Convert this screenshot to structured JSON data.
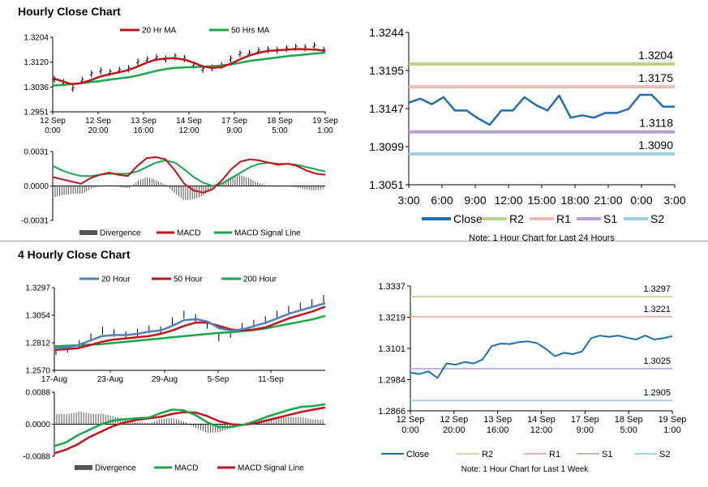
{
  "sections": [
    {
      "title": "Hourly Close Chart"
    },
    {
      "title": "4 Hourly Close Chart"
    }
  ],
  "chart_data": [
    {
      "id": "hourly_price",
      "type": "line",
      "title": "Hourly Close Chart",
      "legend": [
        "20 Hr MA",
        "50 Hrs MA"
      ],
      "colors": {
        "20 Hr MA": "#c0141c",
        "50 Hrs MA": "#1aa64b"
      },
      "ylim": [
        1.2951,
        1.3204
      ],
      "yticks": [
        "1.3204",
        "1.3120",
        "1.3036",
        "1.2951"
      ],
      "xticks": [
        [
          "12 Sep",
          "0:00"
        ],
        [
          "12 Sep",
          "20:00"
        ],
        [
          "13 Sep",
          "16:00"
        ],
        [
          "14 Sep",
          "12:00"
        ],
        [
          "17 Sep",
          "9:00"
        ],
        [
          "18 Sep",
          "5:00"
        ],
        [
          "19 Sep",
          "1:00"
        ]
      ],
      "series": [
        {
          "name": "Close",
          "values": [
            1.3062,
            1.305,
            1.303,
            1.3058,
            1.308,
            1.309,
            1.3085,
            1.3092,
            1.3098,
            1.312,
            1.3128,
            1.3135,
            1.313,
            1.3138,
            1.3132,
            1.311,
            1.3095,
            1.31,
            1.3108,
            1.313,
            1.3148,
            1.315,
            1.3158,
            1.3162,
            1.316,
            1.3165,
            1.317,
            1.3168,
            1.3175,
            1.316
          ]
        },
        {
          "name": "20 Hr MA",
          "values": [
            1.3065,
            1.3055,
            1.3045,
            1.3048,
            1.3058,
            1.307,
            1.3078,
            1.3085,
            1.3092,
            1.3104,
            1.3118,
            1.3128,
            1.3132,
            1.3133,
            1.3128,
            1.3118,
            1.3105,
            1.31,
            1.3103,
            1.3115,
            1.313,
            1.3143,
            1.3152,
            1.3158,
            1.316,
            1.3162,
            1.3164,
            1.3163,
            1.3162,
            1.3158
          ]
        },
        {
          "name": "50 Hrs MA",
          "values": [
            1.304,
            1.3042,
            1.3045,
            1.3048,
            1.3052,
            1.3055,
            1.306,
            1.3064,
            1.3068,
            1.3074,
            1.3082,
            1.309,
            1.3096,
            1.31,
            1.3102,
            1.3103,
            1.3104,
            1.3106,
            1.3108,
            1.3112,
            1.3118,
            1.3124,
            1.3128,
            1.3132,
            1.3136,
            1.314,
            1.3143,
            1.3146,
            1.3149,
            1.3152
          ]
        }
      ]
    },
    {
      "id": "hourly_macd",
      "type": "line",
      "legend": [
        "Divergence",
        "MACD",
        "MACD Signal Line"
      ],
      "colors": {
        "Divergence": "#555555",
        "MACD": "#c0141c",
        "MACD Signal Line": "#1aa64b"
      },
      "ylim": [
        -0.0031,
        0.0031
      ],
      "yticks": [
        "0.0031",
        "0.0000",
        "-0.0031"
      ],
      "series": [
        {
          "name": "MACD",
          "values": [
            0.0008,
            0.0006,
            0.0004,
            0.0002,
            0.0007,
            0.001,
            0.0012,
            0.001,
            0.0009,
            0.0018,
            0.0025,
            0.0026,
            0.0024,
            0.0014,
            0.0002,
            -0.0004,
            -0.0006,
            -0.0003,
            0.0005,
            0.0015,
            0.0022,
            0.0024,
            0.0023,
            0.0021,
            0.0019,
            0.002,
            0.0018,
            0.0014,
            0.0011,
            0.001
          ]
        },
        {
          "name": "MACD Signal Line",
          "values": [
            0.0018,
            0.0014,
            0.0011,
            0.0009,
            0.0009,
            0.001,
            0.0011,
            0.0011,
            0.0011,
            0.0013,
            0.0017,
            0.0021,
            0.0023,
            0.0021,
            0.0015,
            0.0008,
            0.0003,
            0.0,
            0.0002,
            0.0007,
            0.0012,
            0.0017,
            0.002,
            0.0021,
            0.002,
            0.002,
            0.0019,
            0.0017,
            0.0015,
            0.0013
          ]
        }
      ]
    },
    {
      "id": "hourly_levels",
      "type": "line",
      "note": "Note: 1 Hour Chart for Last 24 Hours",
      "ylim": [
        1.3051,
        1.3244
      ],
      "yticks": [
        "1.3244",
        "1.3195",
        "1.3147",
        "1.3099",
        "1.3051"
      ],
      "xticks": [
        "3:00",
        "6:00",
        "9:00",
        "12:00",
        "15:00",
        "18:00",
        "21:00",
        "0:00",
        "3:00"
      ],
      "legend": [
        "Close",
        "R2",
        "R1",
        "S1",
        "S2"
      ],
      "colors": {
        "Close": "#1f6fb0",
        "R2": "#b7d58b",
        "R1": "#f0b9b4",
        "S1": "#b7a2cf",
        "S2": "#9fcfe0"
      },
      "levels": [
        {
          "name": "R2",
          "value": 1.3204,
          "label": "1.3204"
        },
        {
          "name": "R1",
          "value": 1.3175,
          "label": "1.3175"
        },
        {
          "name": "S1",
          "value": 1.3118,
          "label": "1.3118"
        },
        {
          "name": "S2",
          "value": 1.309,
          "label": "1.3090"
        }
      ],
      "series": [
        {
          "name": "Close",
          "values": [
            1.3155,
            1.316,
            1.3153,
            1.3162,
            1.3145,
            1.3145,
            1.3135,
            1.3127,
            1.3145,
            1.3145,
            1.3162,
            1.3152,
            1.3145,
            1.3164,
            1.3136,
            1.3139,
            1.3136,
            1.3142,
            1.3142,
            1.3147,
            1.3165,
            1.3165,
            1.315,
            1.315
          ]
        }
      ]
    },
    {
      "id": "four_hourly_price",
      "type": "line",
      "title": "4 Hourly Close Chart",
      "legend": [
        "20 Hour",
        "50 Hour",
        "200 Hour"
      ],
      "colors": {
        "20 Hour": "#4f81bd",
        "50 Hour": "#c0141c",
        "200 Hour": "#1aa64b"
      },
      "ylim": [
        1.257,
        1.3297
      ],
      "yticks": [
        "1.3297",
        "1.3054",
        "1.2812",
        "1.2570"
      ],
      "xticks": [
        "17-Aug",
        "23-Aug",
        "29-Aug",
        "5-Sep",
        "11-Sep"
      ],
      "series": [
        {
          "name": "Close",
          "values": [
            1.274,
            1.276,
            1.28,
            1.286,
            1.292,
            1.29,
            1.288,
            1.29,
            1.293,
            1.292,
            1.3,
            1.306,
            1.303,
            1.297,
            1.286,
            1.289,
            1.295,
            1.298,
            1.301,
            1.306,
            1.31,
            1.313,
            1.316,
            1.32
          ]
        },
        {
          "name": "20 Hour",
          "values": [
            1.276,
            1.277,
            1.279,
            1.283,
            1.287,
            1.288,
            1.288,
            1.289,
            1.291,
            1.292,
            1.296,
            1.301,
            1.302,
            1.3,
            1.294,
            1.292,
            1.293,
            1.296,
            1.299,
            1.303,
            1.307,
            1.31,
            1.313,
            1.316
          ]
        },
        {
          "name": "50 Hour",
          "values": [
            1.275,
            1.2755,
            1.2765,
            1.279,
            1.282,
            1.284,
            1.285,
            1.286,
            1.287,
            1.289,
            1.292,
            1.296,
            1.299,
            1.299,
            1.296,
            1.293,
            1.292,
            1.293,
            1.295,
            1.299,
            1.303,
            1.306,
            1.309,
            1.313
          ]
        },
        {
          "name": "200 Hour",
          "values": [
            1.278,
            1.2785,
            1.279,
            1.2795,
            1.28,
            1.281,
            1.282,
            1.283,
            1.284,
            1.285,
            1.286,
            1.287,
            1.288,
            1.289,
            1.29,
            1.2905,
            1.2915,
            1.2925,
            1.294,
            1.296,
            1.298,
            1.3,
            1.302,
            1.305
          ]
        }
      ]
    },
    {
      "id": "four_hourly_macd",
      "type": "line",
      "legend": [
        "Divergence",
        "MACD",
        "MACD Signal Line"
      ],
      "colors": {
        "Divergence": "#555555",
        "MACD": "#1aa64b",
        "MACD Signal Line": "#c0141c"
      },
      "ylim": [
        -0.0088,
        0.0088
      ],
      "yticks": [
        "0.0088",
        "0.0000",
        "-0.0088"
      ],
      "series": [
        {
          "name": "MACD",
          "values": [
            -0.006,
            -0.005,
            -0.003,
            -0.0015,
            0.0,
            0.001,
            0.0014,
            0.0016,
            0.0018,
            0.003,
            0.004,
            0.0038,
            0.0025,
            0.0005,
            -0.0008,
            -0.0008,
            -0.0002,
            0.0008,
            0.002,
            0.003,
            0.004,
            0.0048,
            0.005,
            0.0055
          ]
        },
        {
          "name": "MACD Signal Line",
          "values": [
            -0.008,
            -0.007,
            -0.0055,
            -0.0035,
            -0.002,
            -0.0005,
            0.0005,
            0.0012,
            0.0016,
            0.002,
            0.0028,
            0.0033,
            0.0032,
            0.0022,
            0.0008,
            0.0,
            -0.0002,
            0.0002,
            0.001,
            0.0018,
            0.0026,
            0.0034,
            0.004,
            0.0046
          ]
        }
      ]
    },
    {
      "id": "four_hourly_levels",
      "type": "line",
      "note": "Note: 1 Hour Chart for Last 1 Week",
      "ylim": [
        1.2866,
        1.3337
      ],
      "yticks": [
        "1.3337",
        "1.3219",
        "1.3101",
        "1.2984",
        "1.2866"
      ],
      "xticks": [
        [
          "12 Sep",
          "0:00"
        ],
        [
          "12 Sep",
          "20:00"
        ],
        [
          "13 Sep",
          "16:00"
        ],
        [
          "14 Sep",
          "12:00"
        ],
        [
          "17 Sep",
          "9:00"
        ],
        [
          "18 Sep",
          "5:00"
        ],
        [
          "19 Sep",
          "1:00"
        ]
      ],
      "legend": [
        "Close",
        "R2",
        "R1",
        "S1",
        "S2"
      ],
      "colors": {
        "Close": "#1f6fb0",
        "R2": "#c7dca2",
        "R1": "#eab8b3",
        "S1": "#c4b2da",
        "S2": "#a8d4e2"
      },
      "levels": [
        {
          "name": "R2",
          "value": 1.3297,
          "label": "1.3297"
        },
        {
          "name": "R1",
          "value": 1.3221,
          "label": "1.3221"
        },
        {
          "name": "S1",
          "value": 1.3025,
          "label": "1.3025"
        },
        {
          "name": "S2",
          "value": 1.2905,
          "label": "1.2905"
        }
      ],
      "series": [
        {
          "name": "Close",
          "values": [
            1.301,
            1.3005,
            1.3015,
            1.299,
            1.3045,
            1.304,
            1.305,
            1.3045,
            1.306,
            1.311,
            1.312,
            1.3118,
            1.3125,
            1.3128,
            1.3122,
            1.31,
            1.3072,
            1.3085,
            1.308,
            1.309,
            1.314,
            1.315,
            1.3145,
            1.315,
            1.3142,
            1.3135,
            1.315,
            1.3135,
            1.314,
            1.3148
          ]
        }
      ]
    }
  ]
}
